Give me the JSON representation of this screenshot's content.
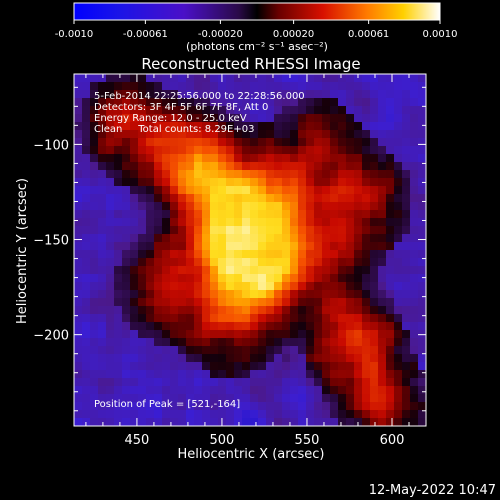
{
  "colorbar": {
    "ticks": [
      "-0.0010",
      "-0.00061",
      "-0.00020",
      "0.00020",
      "0.00061",
      "0.0010"
    ],
    "tick_values": [
      -0.001,
      -0.00061,
      -0.0002,
      0.0002,
      0.00061,
      0.001
    ],
    "range": [
      -0.001,
      0.001
    ],
    "unit_label": "(photons cm⁻² s⁻¹ asec⁻²)"
  },
  "chart_data": {
    "type": "heatmap",
    "title": "Reconstructed RHESSI Image",
    "xlabel": "Heliocentric X (arcsec)",
    "ylabel": "Heliocentric Y (arcsec)",
    "xlim": [
      413,
      620
    ],
    "ylim": [
      -248,
      -63
    ],
    "x_ticks": [
      450,
      500,
      550,
      600
    ],
    "y_ticks": [
      -100,
      -150,
      -200
    ],
    "annotations": [
      "5-Feb-2014 22:25:56.000 to 22:28:56.000",
      "Detectors: 3F 4F 5F 6F 7F 8F, Att 0",
      "Energy Range: 12.0 - 25.0 keV",
      "Clean     Total counts: 8.29E+03"
    ],
    "peak_label": "Position of Peak = [521,-164]",
    "peak": [
      521,
      -164
    ],
    "colormap": "rainbow-negative / hot-positive",
    "sources": [
      {
        "x": 521,
        "y": -164,
        "intensity": 1.0
      },
      {
        "x": 505,
        "y": -148,
        "intensity": 0.75
      },
      {
        "x": 530,
        "y": -135,
        "intensity": 0.65
      },
      {
        "x": 478,
        "y": -108,
        "intensity": 0.55
      },
      {
        "x": 498,
        "y": -118,
        "intensity": 0.5
      },
      {
        "x": 465,
        "y": -175,
        "intensity": 0.45
      },
      {
        "x": 505,
        "y": -195,
        "intensity": 0.45
      },
      {
        "x": 578,
        "y": -205,
        "intensity": 0.55
      },
      {
        "x": 585,
        "y": -130,
        "intensity": 0.45
      },
      {
        "x": 443,
        "y": -90,
        "intensity": 0.45
      },
      {
        "x": 555,
        "y": -100,
        "intensity": 0.35
      },
      {
        "x": 595,
        "y": -238,
        "intensity": 0.4
      },
      {
        "x": 560,
        "y": -160,
        "intensity": 0.35
      }
    ]
  },
  "footer": {
    "timestamp": "12-May-2022 10:47"
  }
}
